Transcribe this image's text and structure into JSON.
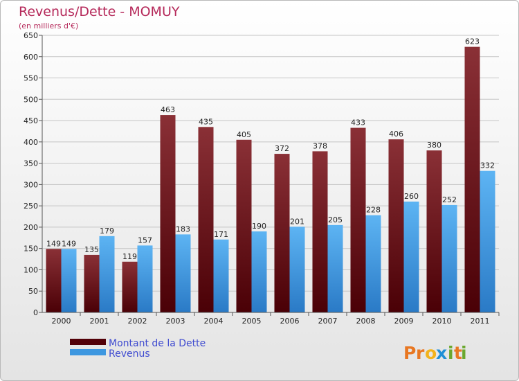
{
  "chart_data": {
    "type": "bar",
    "title": "Revenus/Dette - MOMUY",
    "subtitle": "(en milliers d'€)",
    "categories": [
      "2000",
      "2001",
      "2002",
      "2003",
      "2004",
      "2005",
      "2006",
      "2007",
      "2008",
      "2009",
      "2010",
      "2011"
    ],
    "series": [
      {
        "name": "Montant de la Dette",
        "values": [
          149,
          135,
          119,
          463,
          435,
          405,
          372,
          378,
          433,
          406,
          380,
          623
        ],
        "color": "#7a2129",
        "color_dark": "#520008"
      },
      {
        "name": "Revenus",
        "values": [
          149,
          179,
          157,
          183,
          171,
          190,
          201,
          205,
          228,
          260,
          252,
          332
        ],
        "color": "#55aef0",
        "color_dark": "#2b7fcc"
      }
    ],
    "yticks": [
      0,
      50,
      100,
      150,
      200,
      250,
      300,
      350,
      400,
      450,
      500,
      550,
      600,
      650
    ],
    "ylim": [
      0,
      650
    ],
    "grid": true,
    "legend_position": "bottom-left"
  },
  "brand": {
    "logo_letters": [
      "P",
      "r",
      "o",
      "x",
      "i",
      "t",
      "i"
    ],
    "logo_colors": [
      "#e87722",
      "#e87722",
      "#f2b21c",
      "#1f8fd6",
      "#6aa82e",
      "#e87722",
      "#6aa82e"
    ]
  }
}
